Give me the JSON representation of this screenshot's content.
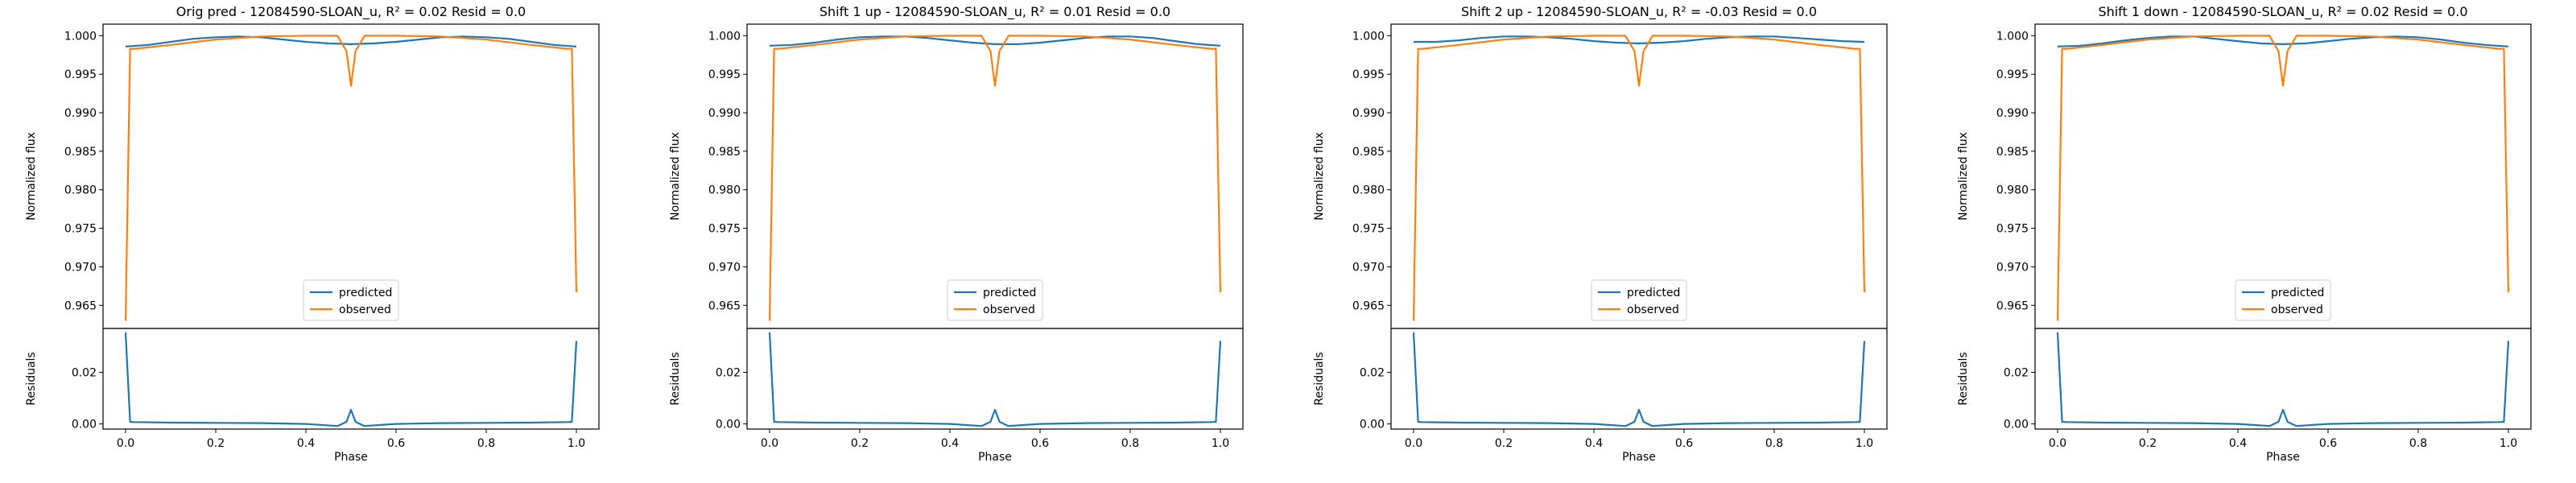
{
  "chart_data": [
    {
      "type": "line",
      "title": "Orig pred - 12084590-SLOAN_u, R² = 0.02 Resid = 0.0",
      "main": {
        "ylabel": "Normalized flux",
        "ylim": [
          0.962,
          1.0015
        ],
        "yticks": [
          "1.000",
          "0.995",
          "0.990",
          "0.985",
          "0.980",
          "0.975",
          "0.970",
          "0.965"
        ],
        "legend": {
          "placement": "lower center",
          "entries": [
            "predicted",
            "observed"
          ]
        },
        "series": [
          {
            "name": "predicted",
            "x": [
              0.0,
              0.05,
              0.1,
              0.15,
              0.2,
              0.25,
              0.3,
              0.35,
              0.4,
              0.45,
              0.5,
              0.55,
              0.6,
              0.65,
              0.7,
              0.75,
              0.8,
              0.85,
              0.9,
              0.95,
              1.0
            ],
            "y": [
              0.9986,
              0.9988,
              0.9992,
              0.9996,
              0.9998,
              0.9999,
              0.9998,
              0.9995,
              0.9992,
              0.999,
              0.9989,
              0.999,
              0.9992,
              0.9995,
              0.9998,
              0.9999,
              0.9998,
              0.9996,
              0.9992,
              0.9988,
              0.9986
            ]
          },
          {
            "name": "observed",
            "x": [
              0.0,
              0.01,
              0.02,
              0.1,
              0.2,
              0.3,
              0.4,
              0.47,
              0.49,
              0.5,
              0.51,
              0.53,
              0.6,
              0.7,
              0.8,
              0.9,
              0.98,
              0.99,
              1.0
            ],
            "y": [
              0.963,
              0.9983,
              0.9983,
              0.9988,
              0.9995,
              0.9999,
              1.0,
              1.0,
              0.998,
              0.9935,
              0.998,
              1.0,
              1.0,
              0.9999,
              0.9995,
              0.9988,
              0.9983,
              0.9983,
              0.9667
            ]
          }
        ]
      },
      "resid": {
        "ylabel": "Residuals",
        "ylim": [
          -0.002,
          0.037
        ],
        "yticks": [
          "0.02",
          "0.00"
        ],
        "series": [
          {
            "name": "residuals",
            "x": [
              0.0,
              0.01,
              0.02,
              0.1,
              0.2,
              0.3,
              0.4,
              0.47,
              0.49,
              0.5,
              0.51,
              0.53,
              0.6,
              0.7,
              0.8,
              0.9,
              0.98,
              0.99,
              1.0
            ],
            "y": [
              0.0355,
              0.0008,
              0.0007,
              0.0005,
              0.0004,
              0.0003,
              0.0,
              -0.0008,
              0.0008,
              0.0055,
              0.0008,
              -0.0008,
              0.0,
              0.0003,
              0.0004,
              0.0005,
              0.0007,
              0.0008,
              0.0322
            ]
          }
        ]
      },
      "xlabel": "Phase",
      "xlim": [
        -0.05,
        1.05
      ],
      "xticks": [
        "0.0",
        "0.2",
        "0.4",
        "0.6",
        "0.8",
        "1.0"
      ]
    },
    {
      "type": "line",
      "title": "Shift 1 up - 12084590-SLOAN_u, R² = 0.01 Resid = 0.0",
      "main": {
        "ylabel": "Normalized flux",
        "ylim": [
          0.962,
          1.0015
        ],
        "yticks": [
          "1.000",
          "0.995",
          "0.990",
          "0.985",
          "0.980",
          "0.975",
          "0.970",
          "0.965"
        ],
        "legend": {
          "placement": "lower center",
          "entries": [
            "predicted",
            "observed"
          ]
        },
        "series": [
          {
            "name": "predicted",
            "x": [
              0.0,
              0.05,
              0.1,
              0.15,
              0.2,
              0.25,
              0.3,
              0.35,
              0.4,
              0.45,
              0.5,
              0.55,
              0.6,
              0.65,
              0.7,
              0.75,
              0.8,
              0.85,
              0.9,
              0.95,
              1.0
            ],
            "y": [
              0.9987,
              0.9988,
              0.9991,
              0.9995,
              0.9998,
              0.9999,
              0.9999,
              0.9997,
              0.9994,
              0.9991,
              0.9989,
              0.9989,
              0.9991,
              0.9994,
              0.9997,
              0.9999,
              0.9999,
              0.9997,
              0.9993,
              0.9989,
              0.9987
            ]
          },
          {
            "name": "observed",
            "x": [
              0.0,
              0.01,
              0.02,
              0.1,
              0.2,
              0.3,
              0.4,
              0.47,
              0.49,
              0.5,
              0.51,
              0.53,
              0.6,
              0.7,
              0.8,
              0.9,
              0.98,
              0.99,
              1.0
            ],
            "y": [
              0.963,
              0.9983,
              0.9983,
              0.9988,
              0.9995,
              0.9999,
              1.0,
              1.0,
              0.998,
              0.9935,
              0.998,
              1.0,
              1.0,
              0.9999,
              0.9995,
              0.9988,
              0.9983,
              0.9983,
              0.9667
            ]
          }
        ]
      },
      "resid": {
        "ylabel": "Residuals",
        "ylim": [
          -0.002,
          0.037
        ],
        "yticks": [
          "0.02",
          "0.00"
        ],
        "series": [
          {
            "name": "residuals",
            "x": [
              0.0,
              0.01,
              0.02,
              0.1,
              0.2,
              0.3,
              0.4,
              0.47,
              0.49,
              0.5,
              0.51,
              0.53,
              0.6,
              0.7,
              0.8,
              0.9,
              0.98,
              0.99,
              1.0
            ],
            "y": [
              0.0355,
              0.0008,
              0.0007,
              0.0005,
              0.0004,
              0.0003,
              0.0,
              -0.0008,
              0.0008,
              0.0055,
              0.0008,
              -0.0008,
              0.0,
              0.0003,
              0.0004,
              0.0005,
              0.0007,
              0.0008,
              0.0322
            ]
          }
        ]
      },
      "xlabel": "Phase",
      "xlim": [
        -0.05,
        1.05
      ],
      "xticks": [
        "0.0",
        "0.2",
        "0.4",
        "0.6",
        "0.8",
        "1.0"
      ]
    },
    {
      "type": "line",
      "title": "Shift 2 up - 12084590-SLOAN_u, R² = -0.03 Resid = 0.0",
      "main": {
        "ylabel": "Normalized flux",
        "ylim": [
          0.962,
          1.0015
        ],
        "yticks": [
          "1.000",
          "0.995",
          "0.990",
          "0.985",
          "0.980",
          "0.975",
          "0.970",
          "0.965"
        ],
        "legend": {
          "placement": "lower center",
          "entries": [
            "predicted",
            "observed"
          ]
        },
        "series": [
          {
            "name": "predicted",
            "x": [
              0.0,
              0.05,
              0.1,
              0.15,
              0.2,
              0.25,
              0.3,
              0.35,
              0.4,
              0.45,
              0.5,
              0.55,
              0.6,
              0.65,
              0.7,
              0.75,
              0.8,
              0.85,
              0.9,
              0.95,
              1.0
            ],
            "y": [
              0.9992,
              0.9992,
              0.9994,
              0.9997,
              0.9999,
              0.9999,
              0.9998,
              0.9996,
              0.9993,
              0.9991,
              0.999,
              0.9991,
              0.9993,
              0.9996,
              0.9998,
              0.9999,
              0.9999,
              0.9997,
              0.9995,
              0.9993,
              0.9992
            ]
          },
          {
            "name": "observed",
            "x": [
              0.0,
              0.01,
              0.02,
              0.1,
              0.2,
              0.3,
              0.4,
              0.47,
              0.49,
              0.5,
              0.51,
              0.53,
              0.6,
              0.7,
              0.8,
              0.9,
              0.98,
              0.99,
              1.0
            ],
            "y": [
              0.963,
              0.9983,
              0.9983,
              0.9988,
              0.9995,
              0.9999,
              1.0,
              1.0,
              0.998,
              0.9935,
              0.998,
              1.0,
              1.0,
              0.9999,
              0.9995,
              0.9988,
              0.9983,
              0.9983,
              0.9667
            ]
          }
        ]
      },
      "resid": {
        "ylabel": "Residuals",
        "ylim": [
          -0.002,
          0.037
        ],
        "yticks": [
          "0.02",
          "0.00"
        ],
        "series": [
          {
            "name": "residuals",
            "x": [
              0.0,
              0.01,
              0.02,
              0.1,
              0.2,
              0.3,
              0.4,
              0.47,
              0.49,
              0.5,
              0.51,
              0.53,
              0.6,
              0.7,
              0.8,
              0.9,
              0.98,
              0.99,
              1.0
            ],
            "y": [
              0.0355,
              0.0008,
              0.0007,
              0.0005,
              0.0004,
              0.0003,
              0.0,
              -0.0008,
              0.0008,
              0.0055,
              0.0008,
              -0.0008,
              0.0,
              0.0003,
              0.0004,
              0.0005,
              0.0007,
              0.0008,
              0.0322
            ]
          }
        ]
      },
      "xlabel": "Phase",
      "xlim": [
        -0.05,
        1.05
      ],
      "xticks": [
        "0.0",
        "0.2",
        "0.4",
        "0.6",
        "0.8",
        "1.0"
      ]
    },
    {
      "type": "line",
      "title": "Shift 1 down - 12084590-SLOAN_u, R² = 0.02 Resid = 0.0",
      "main": {
        "ylabel": "Normalized flux",
        "ylim": [
          0.962,
          1.0015
        ],
        "yticks": [
          "1.000",
          "0.995",
          "0.990",
          "0.985",
          "0.980",
          "0.975",
          "0.970",
          "0.965"
        ],
        "legend": {
          "placement": "lower center",
          "entries": [
            "predicted",
            "observed"
          ]
        },
        "series": [
          {
            "name": "predicted",
            "x": [
              0.0,
              0.05,
              0.1,
              0.15,
              0.2,
              0.25,
              0.3,
              0.35,
              0.4,
              0.45,
              0.5,
              0.55,
              0.6,
              0.65,
              0.7,
              0.75,
              0.8,
              0.85,
              0.9,
              0.95,
              1.0
            ],
            "y": [
              0.9986,
              0.9987,
              0.999,
              0.9994,
              0.9997,
              0.9999,
              0.9999,
              0.9996,
              0.9993,
              0.999,
              0.9989,
              0.999,
              0.9993,
              0.9996,
              0.9998,
              0.9999,
              0.9998,
              0.9995,
              0.9991,
              0.9988,
              0.9986
            ]
          },
          {
            "name": "observed",
            "x": [
              0.0,
              0.01,
              0.02,
              0.1,
              0.2,
              0.3,
              0.4,
              0.47,
              0.49,
              0.5,
              0.51,
              0.53,
              0.6,
              0.7,
              0.8,
              0.9,
              0.98,
              0.99,
              1.0
            ],
            "y": [
              0.963,
              0.9983,
              0.9983,
              0.9988,
              0.9995,
              0.9999,
              1.0,
              1.0,
              0.998,
              0.9935,
              0.998,
              1.0,
              1.0,
              0.9999,
              0.9995,
              0.9988,
              0.9983,
              0.9983,
              0.9667
            ]
          }
        ]
      },
      "resid": {
        "ylabel": "Residuals",
        "ylim": [
          -0.002,
          0.037
        ],
        "yticks": [
          "0.02",
          "0.00"
        ],
        "series": [
          {
            "name": "residuals",
            "x": [
              0.0,
              0.01,
              0.02,
              0.1,
              0.2,
              0.3,
              0.4,
              0.47,
              0.49,
              0.5,
              0.51,
              0.53,
              0.6,
              0.7,
              0.8,
              0.9,
              0.98,
              0.99,
              1.0
            ],
            "y": [
              0.0355,
              0.0008,
              0.0007,
              0.0005,
              0.0004,
              0.0003,
              0.0,
              -0.0008,
              0.0008,
              0.0055,
              0.0008,
              -0.0008,
              0.0,
              0.0003,
              0.0004,
              0.0005,
              0.0007,
              0.0008,
              0.0322
            ]
          }
        ]
      },
      "xlabel": "Phase",
      "xlim": [
        -0.05,
        1.05
      ],
      "xticks": [
        "0.0",
        "0.2",
        "0.4",
        "0.6",
        "0.8",
        "1.0"
      ]
    }
  ],
  "colors": {
    "predicted": "#1f77b4",
    "observed": "#ff7f0e",
    "residuals": "#1f77b4"
  }
}
